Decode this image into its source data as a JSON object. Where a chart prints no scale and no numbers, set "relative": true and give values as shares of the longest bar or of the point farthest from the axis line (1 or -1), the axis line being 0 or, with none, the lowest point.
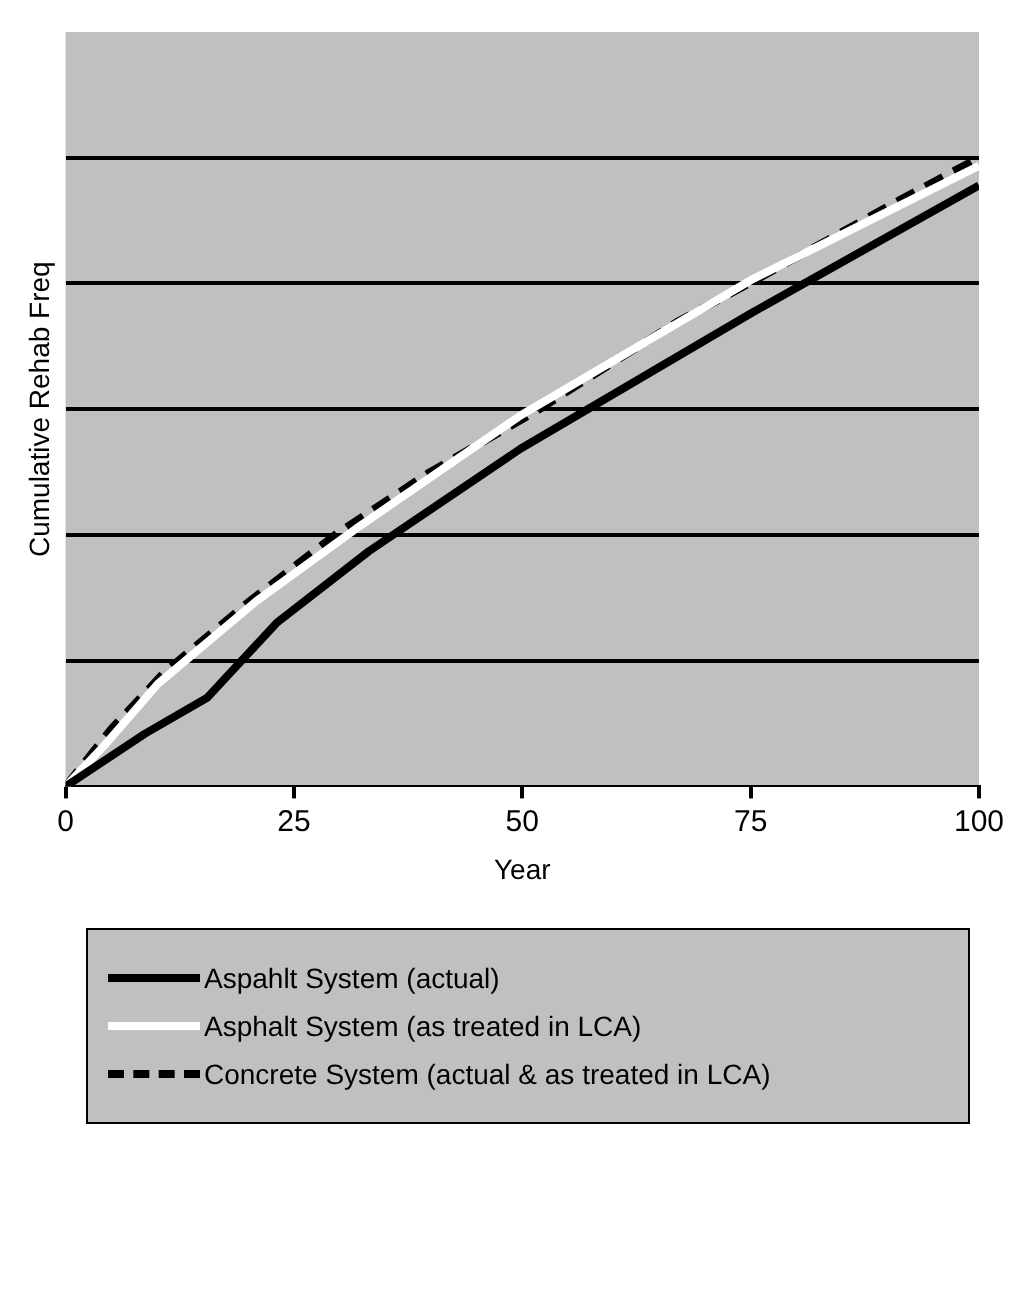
{
  "chart_data": {
    "type": "line",
    "relative": true,
    "xlabel": "Year",
    "ylabel": "Cumulative Rehab Freq",
    "xlim": [
      0,
      100
    ],
    "xticks": [
      0,
      25,
      50,
      75,
      100
    ],
    "grid": "y",
    "legend": "bottom",
    "marker": "none",
    "series": [
      {
        "name": "Aspahlt System (actual)",
        "color": "#000000",
        "line_style": "solid",
        "x": [
          0,
          8.7,
          15.5,
          23.1,
          33.2,
          49.8,
          75.1,
          100
        ],
        "values": [
          0,
          0.084,
          0.141,
          0.26,
          0.374,
          0.537,
          0.753,
          0.956
        ]
      },
      {
        "name": "Asphalt System (as treated in LCA)",
        "color": "#ffffff",
        "line_style": "solid",
        "x": [
          0,
          4.3,
          10.1,
          20.9,
          31.8,
          49.8,
          75.1,
          100
        ],
        "values": [
          0,
          0.066,
          0.163,
          0.295,
          0.41,
          0.59,
          0.806,
          0.987
        ]
      },
      {
        "name": "Concrete System (actual & as treated in LCA)",
        "color": "#000000",
        "line_style": "dashed",
        "x": [
          0,
          5.1,
          10.8,
          20.2,
          29.6,
          39.7,
          51.3,
          67.1,
          75.1,
          91,
          100
        ],
        "values": [
          0,
          0.093,
          0.181,
          0.295,
          0.401,
          0.498,
          0.595,
          0.74,
          0.802,
          0.93,
          1
        ]
      }
    ]
  }
}
